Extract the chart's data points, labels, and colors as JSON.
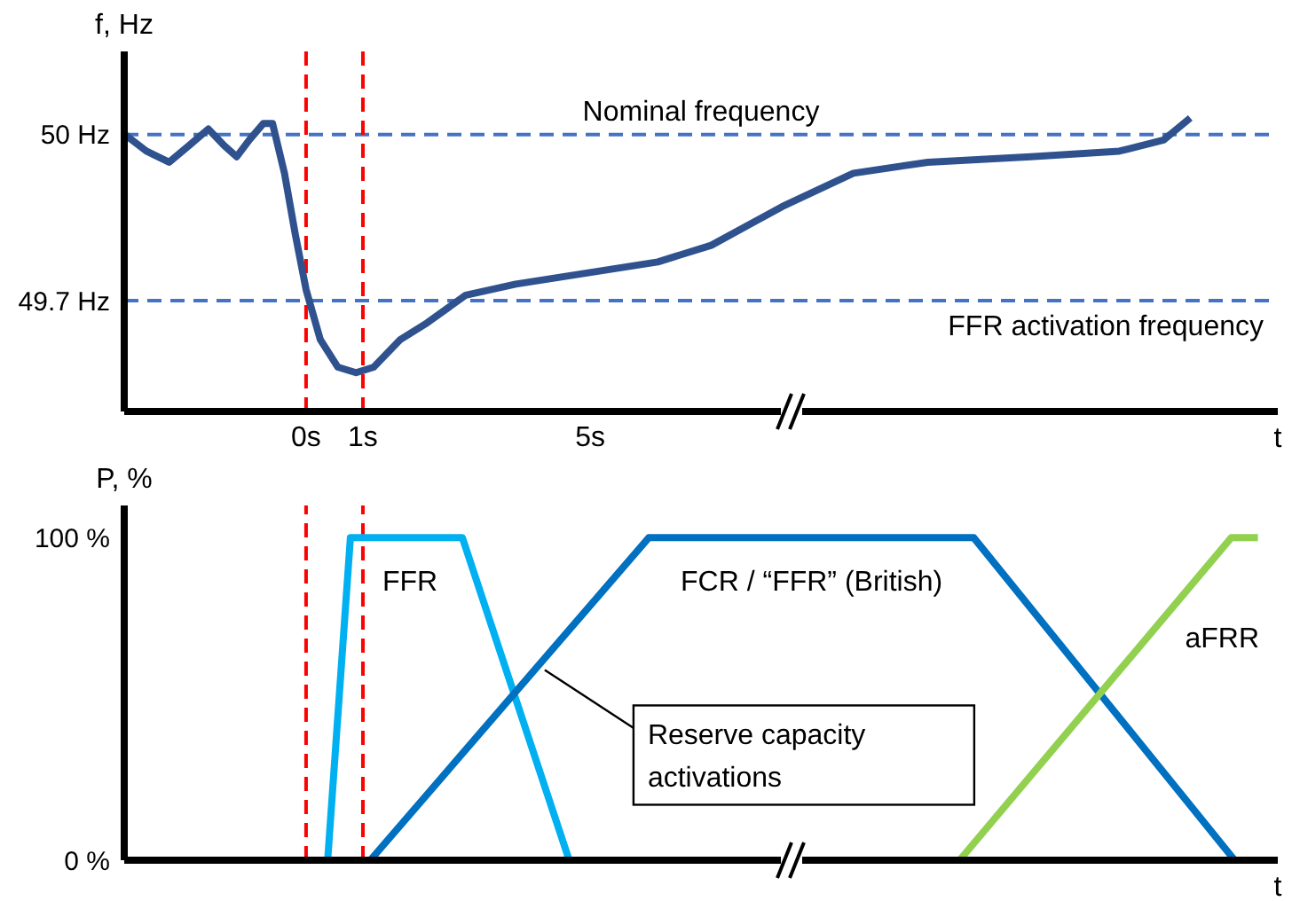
{
  "chart_data": [
    {
      "type": "line",
      "xlabel": "t",
      "ylabel": "f, Hz",
      "marker": "none",
      "xlim": [
        -3.2,
        17.1
      ],
      "xticks": [
        {
          "value": 0,
          "label": "0s"
        },
        {
          "value": 1,
          "label": "1s"
        },
        {
          "value": 5,
          "label": "5s"
        }
      ],
      "ylim": [
        49.5,
        50.15
      ],
      "yticks": [
        {
          "value": 49.7,
          "label": "49.7 Hz"
        },
        {
          "value": 50,
          "label": "50 Hz"
        }
      ],
      "series": [
        {
          "color": "#2f528f",
          "x": [
            -3.19,
            -2.81,
            -2.41,
            -2.06,
            -1.72,
            -1.44,
            -1.22,
            -1.0,
            -0.75,
            -0.59,
            -0.38,
            -0.19,
            0,
            0.25,
            0.56,
            0.88,
            1.19,
            1.66,
            2.13,
            2.81,
            3.69,
            4.94,
            6.19,
            7.13,
            8.38,
            9.63,
            10.94,
            12.75,
            14.31,
            15.09,
            15.56
          ],
          "values": [
            50.0,
            49.97,
            49.95,
            49.98,
            50.01,
            49.98,
            49.96,
            49.99,
            50.02,
            50.02,
            49.93,
            49.82,
            49.72,
            49.63,
            49.58,
            49.57,
            49.58,
            49.63,
            49.66,
            49.71,
            49.73,
            49.75,
            49.77,
            49.8,
            49.87,
            49.93,
            49.95,
            49.96,
            49.97,
            49.99,
            50.03
          ]
        }
      ],
      "ref_lines": [
        {
          "axis": "y",
          "value": 50,
          "label": "Nominal frequency",
          "color": "#4472c4",
          "line_style": "dashed"
        },
        {
          "axis": "y",
          "value": 49.7,
          "label": "FFR activation frequency",
          "color": "#4472c4",
          "line_style": "dashed"
        },
        {
          "axis": "x",
          "value": 0,
          "color": "#ff0000",
          "line_style": "dashed"
        },
        {
          "axis": "x",
          "value": 1,
          "color": "#ff0000",
          "line_style": "dashed"
        }
      ]
    },
    {
      "type": "line",
      "xlabel": "t",
      "ylabel": "P, %",
      "marker": "none",
      "tick_labels": "y",
      "xlim": [
        -3.2,
        17.1
      ],
      "ylim": [
        0,
        110
      ],
      "yticks": [
        {
          "value": 0,
          "label": "0 %"
        },
        {
          "value": 100,
          "label": "100 %"
        }
      ],
      "series": [
        {
          "name": "FFR",
          "color": "#00b0f0",
          "x": [
            0.38,
            0.78,
            2.75,
            4.63
          ],
          "values": [
            0,
            100,
            100,
            0
          ]
        },
        {
          "name": "FCR / “FFR” (British)",
          "color": "#0070c0",
          "x": [
            1.13,
            6.03,
            11.75,
            16.34
          ],
          "values": [
            0,
            100,
            100,
            0
          ]
        },
        {
          "name": "aFRR",
          "color": "#92d050",
          "x": [
            11.5,
            16.28,
            16.75
          ],
          "values": [
            0,
            100,
            100
          ]
        }
      ],
      "ref_lines": [
        {
          "axis": "x",
          "value": 0,
          "color": "#ff0000",
          "line_style": "dashed"
        },
        {
          "axis": "x",
          "value": 1,
          "color": "#ff0000",
          "line_style": "dashed"
        }
      ],
      "annotations": [
        {
          "text": "Reserve capacity activations",
          "x": 4.2,
          "y": 59
        }
      ]
    }
  ]
}
